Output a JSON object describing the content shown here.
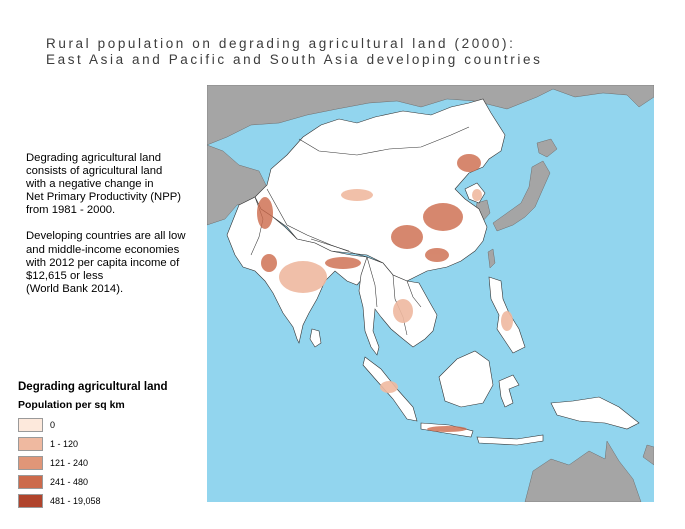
{
  "title": {
    "line1": "Rural population on degrading agricultural land (2000):",
    "line2": "East Asia and Pacific and South Asia developing countries"
  },
  "note": {
    "paragraph1": "Degrading agricultural land\nconsists of agricultural land\nwith a negative change in\nNet Primary Productivity (NPP)\nfrom 1981 - 2000.",
    "paragraph2": "Developing countries are all low\nand middle-income economies\nwith 2012 per capita income of\n$12,615 or less\n(World Bank 2014)."
  },
  "legend": {
    "title": "Degrading agricultural land",
    "subtitle": "Population per sq km",
    "items": [
      {
        "label": "0",
        "color": "#fde9dc"
      },
      {
        "label": "1 - 120",
        "color": "#efb9a0"
      },
      {
        "label": "121 - 240",
        "color": "#e09678"
      },
      {
        "label": "241 - 480",
        "color": "#cc6a4b"
      },
      {
        "label": "481 - 19,058",
        "color": "#b0442c"
      }
    ]
  },
  "map": {
    "ocean_color": "#92d5ee",
    "nondeveloping_land_color": "#a5a5a5",
    "developing_land_color": "#ffffff",
    "border_color": "#333333"
  }
}
